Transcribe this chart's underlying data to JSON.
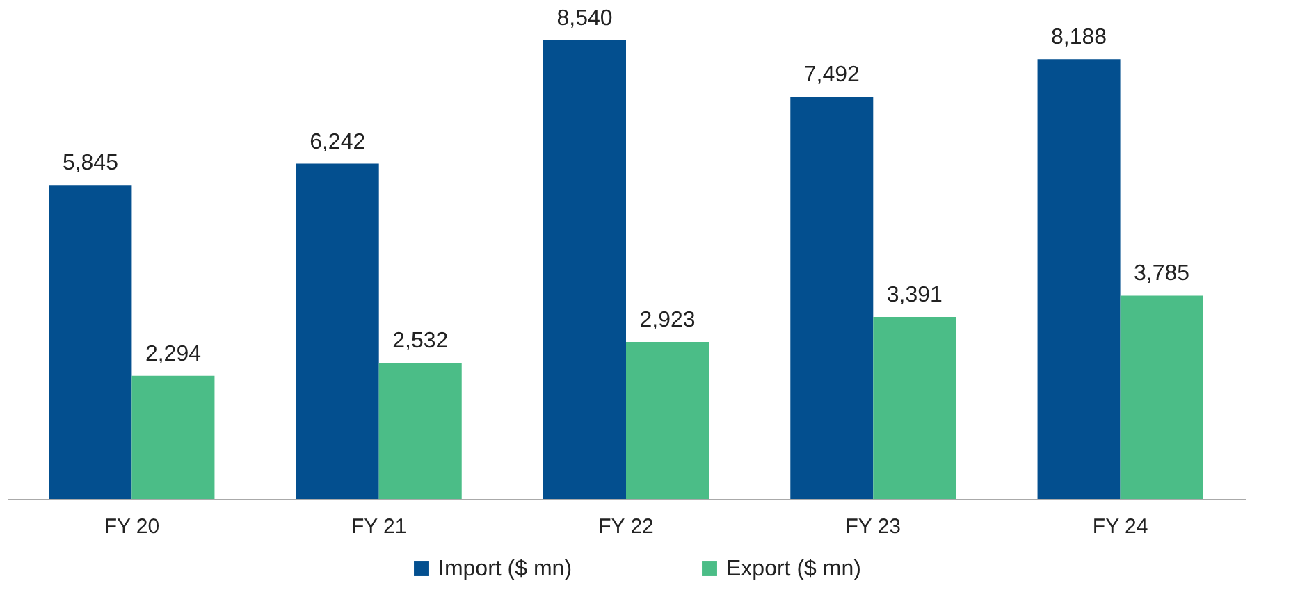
{
  "chart_data": {
    "type": "bar",
    "categories": [
      "FY 20",
      "FY 21",
      "FY 22",
      "FY 23",
      "FY 24"
    ],
    "series": [
      {
        "name": "Import ($ mn)",
        "color": "#034f8f",
        "values": [
          5845,
          6242,
          8540,
          7492,
          8188
        ],
        "value_labels": [
          "5,845",
          "6,242",
          "8,540",
          "7,492",
          "8,188"
        ]
      },
      {
        "name": "Export ($ mn)",
        "color": "#4bbd87",
        "values": [
          2294,
          2532,
          2923,
          3391,
          3785
        ],
        "value_labels": [
          "2,294",
          "2,532",
          "2,923",
          "3,391",
          "3,785"
        ]
      }
    ],
    "legend": "bottom",
    "grid": false
  }
}
